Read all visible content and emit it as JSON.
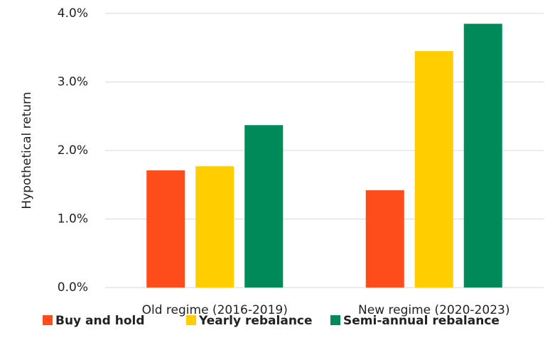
{
  "chart_data": {
    "type": "bar",
    "y_label": "Hypothetical return",
    "categories": [
      "Old regime (2016-2019)",
      "New regime (2020-2023)"
    ],
    "series": [
      {
        "name": "Buy and hold",
        "color": "#ff4c1b",
        "values": [
          1.71,
          1.42
        ]
      },
      {
        "name": "Yearly rebalance",
        "color": "#ffcd00",
        "values": [
          1.77,
          3.45
        ]
      },
      {
        "name": "Semi-annual rebalance",
        "color": "#008a5a",
        "values": [
          2.37,
          3.85
        ]
      }
    ],
    "ylim": [
      0,
      4
    ],
    "yticks": [
      {
        "value": 0,
        "label": "0.0%"
      },
      {
        "value": 1,
        "label": "1.0%"
      },
      {
        "value": 2,
        "label": "2.0%"
      },
      {
        "value": 3,
        "label": "3.0%"
      },
      {
        "value": 4,
        "label": "4.0%"
      }
    ],
    "grid": true,
    "legend": "bottom"
  }
}
